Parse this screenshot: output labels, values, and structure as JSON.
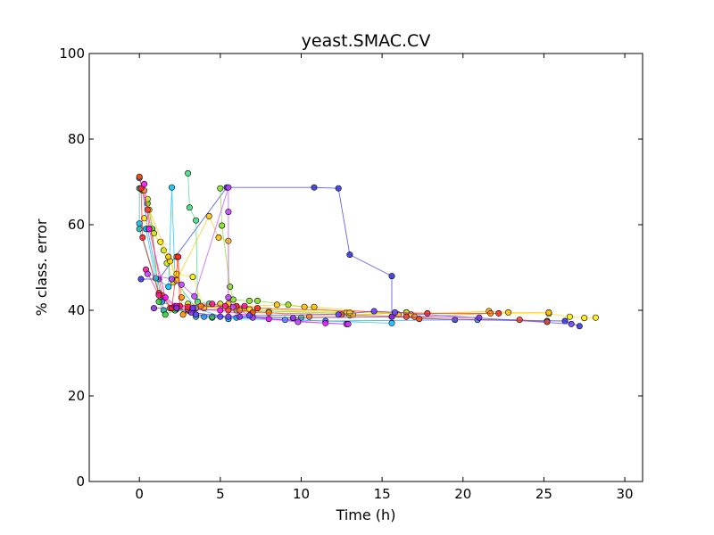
{
  "chart_data": {
    "type": "line",
    "title": "yeast.SMAC.CV",
    "xlabel": "Time (h)",
    "ylabel": "% class. error",
    "xlim": [
      -3.1,
      31.1
    ],
    "ylim": [
      0,
      100
    ],
    "xticks": [
      0,
      5,
      10,
      15,
      20,
      25,
      30
    ],
    "yticks": [
      0,
      20,
      40,
      60,
      80,
      100
    ],
    "xtick_labels": [
      "0",
      "5",
      "10",
      "15",
      "20",
      "25",
      "30"
    ],
    "ytick_labels": [
      "0",
      "20",
      "40",
      "60",
      "80",
      "100"
    ],
    "grid": false,
    "legend": "none",
    "series": [
      {
        "color": "#3030e0",
        "points": [
          [
            0.1,
            47.3
          ],
          [
            1.2,
            47.3
          ],
          [
            5.4,
            68.7
          ],
          [
            10.8,
            68.7
          ],
          [
            12.3,
            68.5
          ],
          [
            13.0,
            53.0
          ],
          [
            15.6,
            48.0
          ],
          [
            15.6,
            38.5
          ],
          [
            19.5,
            37.8
          ],
          [
            26.3,
            37.5
          ],
          [
            27.2,
            36.3
          ]
        ]
      },
      {
        "color": "#1e90ff",
        "points": [
          [
            0.0,
            70.9
          ],
          [
            0.2,
            68.0
          ],
          [
            0.5,
            59.0
          ],
          [
            1.4,
            42.0
          ],
          [
            2.3,
            40.5
          ],
          [
            4.0,
            38.5
          ],
          [
            6.0,
            38.3
          ],
          [
            11.5,
            37.5
          ],
          [
            20.9,
            37.8
          ],
          [
            25.2,
            37.5
          ]
        ]
      },
      {
        "color": "#00bfff",
        "points": [
          [
            0.0,
            60.3
          ],
          [
            0.4,
            59.0
          ],
          [
            1.0,
            47.5
          ],
          [
            1.8,
            45.5
          ],
          [
            2.0,
            68.7
          ],
          [
            2.2,
            47.0
          ],
          [
            3.5,
            40.5
          ],
          [
            5.5,
            38.0
          ],
          [
            9.0,
            37.8
          ],
          [
            15.6,
            37.0
          ]
        ]
      },
      {
        "color": "#20b2aa",
        "points": [
          [
            0.0,
            68.5
          ],
          [
            0.0,
            59.0
          ],
          [
            1.5,
            40.0
          ],
          [
            2.3,
            40.3
          ],
          [
            3.5,
            38.5
          ],
          [
            4.5,
            38.3
          ],
          [
            7.0,
            38.5
          ],
          [
            10.0,
            38.3
          ]
        ]
      },
      {
        "color": "#32cd32",
        "points": [
          [
            0.5,
            65.0
          ],
          [
            0.8,
            59.0
          ],
          [
            1.2,
            42.0
          ],
          [
            1.6,
            39.0
          ],
          [
            2.2,
            40.0
          ],
          [
            3.0,
            40.0
          ],
          [
            4.5,
            38.5
          ]
        ]
      },
      {
        "color": "#3cdc78",
        "points": [
          [
            3.0,
            72.0
          ],
          [
            3.1,
            64.0
          ],
          [
            3.5,
            61.0
          ],
          [
            3.6,
            42.0
          ],
          [
            4.3,
            41.5
          ],
          [
            6.0,
            40.0
          ],
          [
            8.0,
            39.8
          ],
          [
            13.0,
            39.3
          ]
        ]
      },
      {
        "color": "#7fe020",
        "points": [
          [
            5.0,
            68.5
          ],
          [
            5.1,
            59.8
          ],
          [
            5.6,
            45.5
          ],
          [
            5.8,
            42.5
          ],
          [
            6.8,
            42.2
          ],
          [
            7.3,
            42.2
          ],
          [
            9.2,
            41.3
          ],
          [
            12.8,
            39.5
          ],
          [
            13.0,
            38.8
          ],
          [
            16.5,
            39.5
          ]
        ]
      },
      {
        "color": "#c8e020",
        "points": [
          [
            0.5,
            66.0
          ],
          [
            0.9,
            58.0
          ],
          [
            1.5,
            54.0
          ],
          [
            1.7,
            51.0
          ],
          [
            2.1,
            46.5
          ],
          [
            2.3,
            48.5
          ],
          [
            3.0,
            41.5
          ],
          [
            5.0,
            41.5
          ],
          [
            6.5,
            40.5
          ],
          [
            13.2,
            39.0
          ],
          [
            16.5,
            39.5
          ]
        ]
      },
      {
        "color": "#ffe800",
        "points": [
          [
            0.3,
            61.5
          ],
          [
            0.6,
            59.0
          ],
          [
            1.3,
            56.0
          ],
          [
            1.9,
            51.5
          ],
          [
            2.3,
            48.5
          ],
          [
            3.3,
            47.8
          ],
          [
            4.0,
            40.5
          ],
          [
            6.8,
            40.3
          ],
          [
            13.0,
            39.5
          ],
          [
            25.3,
            39.2
          ],
          [
            26.6,
            38.5
          ],
          [
            27.5,
            38.2
          ],
          [
            28.2,
            38.3
          ]
        ]
      },
      {
        "color": "#ffc000",
        "points": [
          [
            0.3,
            68.0
          ],
          [
            0.6,
            63.5
          ],
          [
            1.8,
            52.5
          ],
          [
            2.3,
            47.0
          ],
          [
            4.3,
            62.0
          ],
          [
            4.9,
            57.0
          ],
          [
            5.5,
            56.2
          ],
          [
            5.5,
            41.5
          ],
          [
            6.0,
            40.8
          ],
          [
            8.5,
            41.3
          ],
          [
            10.2,
            40.8
          ],
          [
            10.8,
            40.8
          ],
          [
            16.0,
            39.0
          ],
          [
            16.8,
            39.0
          ],
          [
            21.6,
            39.8
          ],
          [
            22.8,
            39.5
          ],
          [
            25.3,
            39.5
          ]
        ]
      },
      {
        "color": "#ff8c00",
        "points": [
          [
            2.3,
            52.5
          ],
          [
            2.6,
            43.0
          ],
          [
            2.7,
            39.0
          ],
          [
            3.8,
            41.0
          ],
          [
            6.2,
            40.0
          ],
          [
            8.0,
            39.5
          ],
          [
            10.5,
            38.5
          ],
          [
            17.0,
            38.5
          ],
          [
            21.7,
            39.3
          ]
        ]
      },
      {
        "color": "#ff4500",
        "points": [
          [
            0.0,
            71.2
          ],
          [
            0.5,
            63.5
          ],
          [
            1.4,
            43.5
          ],
          [
            1.9,
            40.5
          ],
          [
            3.0,
            40.2
          ],
          [
            5.5,
            40.0
          ],
          [
            7.0,
            39.5
          ],
          [
            12.5,
            39.0
          ],
          [
            16.5,
            38.5
          ],
          [
            17.3,
            38.0
          ],
          [
            23.5,
            37.8
          ],
          [
            25.2,
            37.3
          ]
        ]
      },
      {
        "color": "#ff2020",
        "points": [
          [
            0.1,
            68.5
          ],
          [
            0.2,
            57.0
          ],
          [
            1.2,
            44.0
          ],
          [
            2.0,
            40.5
          ],
          [
            2.4,
            52.5
          ],
          [
            2.5,
            41.0
          ],
          [
            3.0,
            40.8
          ],
          [
            6.0,
            41.0
          ],
          [
            7.3,
            40.5
          ],
          [
            17.8,
            39.3
          ],
          [
            22.2,
            39.3
          ]
        ]
      },
      {
        "color": "#ff1493",
        "points": [
          [
            0.4,
            49.5
          ],
          [
            1.2,
            43.5
          ],
          [
            2.2,
            41.0
          ],
          [
            4.5,
            41.5
          ],
          [
            5.3,
            41.0
          ],
          [
            6.5,
            41.0
          ]
        ]
      },
      {
        "color": "#ff00ff",
        "points": [
          [
            0.3,
            69.5
          ],
          [
            0.6,
            59.0
          ],
          [
            1.6,
            43.0
          ],
          [
            2.3,
            41.0
          ],
          [
            3.3,
            40.2
          ],
          [
            5.0,
            40.0
          ],
          [
            8.0,
            38.0
          ],
          [
            11.5,
            37.0
          ],
          [
            12.8,
            36.8
          ]
        ]
      },
      {
        "color": "#c040ff",
        "points": [
          [
            0.5,
            48.5
          ],
          [
            2.0,
            47.3
          ],
          [
            2.6,
            46.0
          ],
          [
            3.4,
            43.3
          ],
          [
            5.5,
            68.7
          ],
          [
            5.5,
            63.0
          ],
          [
            5.5,
            43.0
          ],
          [
            5.8,
            40.8
          ],
          [
            7.0,
            38.3
          ],
          [
            9.8,
            37.3
          ],
          [
            12.9,
            36.8
          ]
        ]
      },
      {
        "color": "#8a2be2",
        "points": [
          [
            0.9,
            40.5
          ],
          [
            2.3,
            40.5
          ],
          [
            3.2,
            39.5
          ],
          [
            5.5,
            38.5
          ],
          [
            6.2,
            38.5
          ],
          [
            9.5,
            38.2
          ],
          [
            15.6,
            38.5
          ],
          [
            21.0,
            38.3
          ]
        ]
      },
      {
        "color": "#6040ff",
        "points": [
          [
            3.3,
            40.5
          ],
          [
            3.5,
            39.0
          ],
          [
            5.0,
            38.5
          ],
          [
            6.8,
            38.8
          ],
          [
            12.3,
            39.0
          ],
          [
            14.5,
            39.8
          ],
          [
            15.8,
            39.5
          ],
          [
            26.7,
            36.8
          ]
        ]
      }
    ]
  }
}
